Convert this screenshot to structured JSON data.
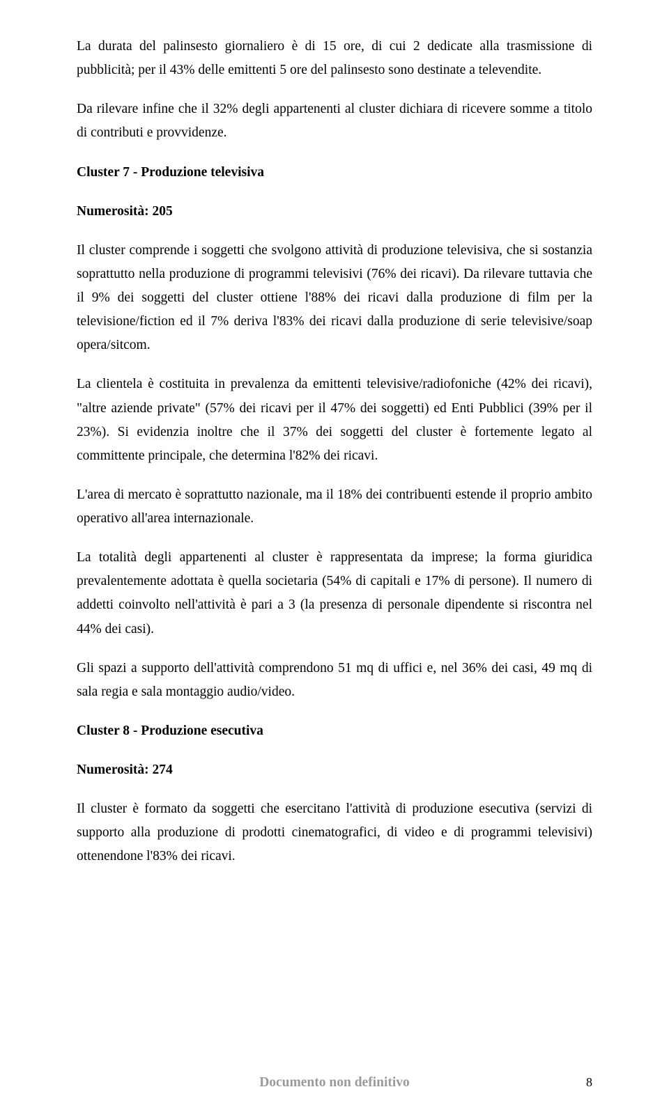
{
  "paragraphs": {
    "p1": "La durata del palinsesto giornaliero è di 15 ore, di cui 2 dedicate alla trasmissione di pubblicità; per il 43% delle emittenti 5 ore del palinsesto sono destinate a televendite.",
    "p2": "Da rilevare infine che il 32% degli appartenenti al cluster dichiara di ricevere somme a titolo di contributi e provvidenze.",
    "p3": "Cluster 7  -  Produzione televisiva",
    "p4": "Numerosità: 205",
    "p5": "Il cluster comprende i soggetti che svolgono attività di produzione televisiva, che si sostanzia soprattutto nella produzione di programmi televisivi (76% dei ricavi). Da rilevare tuttavia che il 9% dei soggetti del cluster ottiene l'88% dei ricavi dalla produzione di film per la televisione/fiction ed il 7% deriva l'83% dei ricavi dalla produzione di serie televisive/soap opera/sitcom.",
    "p6": "La clientela è costituita in prevalenza da emittenti televisive/radiofoniche (42% dei ricavi), \"altre aziende private\" (57% dei ricavi per il 47% dei soggetti) ed Enti Pubblici (39% per il 23%). Si evidenzia inoltre che il 37% dei soggetti del cluster è fortemente legato al committente principale, che determina l'82% dei ricavi.",
    "p7": "L'area di mercato è soprattutto nazionale, ma il 18% dei contribuenti estende il proprio ambito operativo all'area internazionale.",
    "p8": "La totalità degli appartenenti al cluster è rappresentata da imprese; la forma giuridica prevalentemente adottata è quella societaria (54% di capitali e 17% di persone). Il numero di addetti coinvolto nell'attività è pari a 3 (la presenza di personale dipendente si riscontra nel 44% dei casi).",
    "p9": "Gli spazi a supporto dell'attività comprendono 51 mq di uffici e, nel 36% dei casi, 49 mq di sala regia e sala montaggio audio/video.",
    "p10": "Cluster 8  -  Produzione esecutiva",
    "p11": "Numerosità: 274",
    "p12": "Il cluster è formato da soggetti che esercitano l'attività di produzione esecutiva (servizi di supporto alla produzione di prodotti cinematografici, di video e di programmi televisivi) ottenendone l'83% dei ricavi."
  },
  "footer": {
    "center": "Documento non definitivo",
    "page_number": "8"
  }
}
